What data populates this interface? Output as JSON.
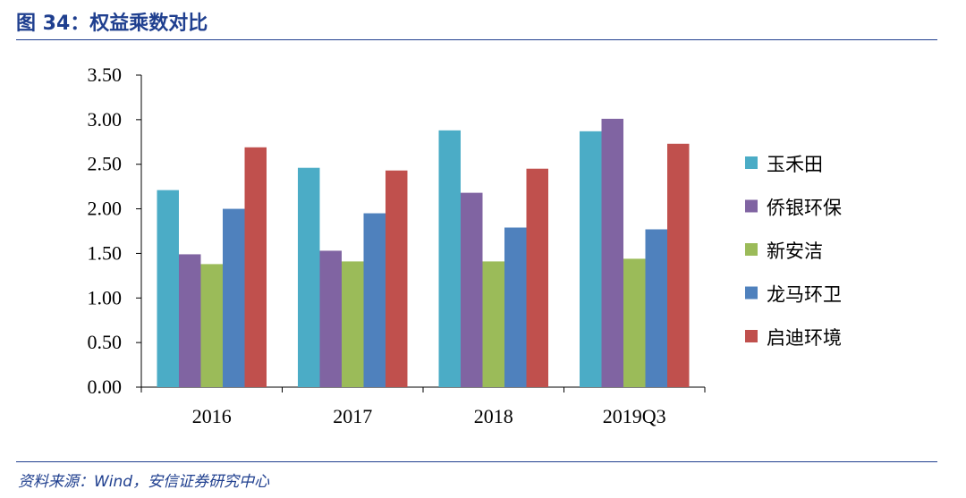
{
  "figure": {
    "title": "图 34：权益乘数对比",
    "source": "资料来源：Wind，安信证券研究中心"
  },
  "chart_data": {
    "type": "bar",
    "title": "",
    "xlabel": "",
    "ylabel": "",
    "categories": [
      "2016",
      "2017",
      "2018",
      "2019Q3"
    ],
    "ylim": [
      0,
      3.5
    ],
    "yticks": [
      "0.00",
      "0.50",
      "1.00",
      "1.50",
      "2.00",
      "2.50",
      "3.00",
      "3.50"
    ],
    "grid": false,
    "legend_position": "right",
    "series": [
      {
        "name": "玉禾田",
        "color": "#4BACC6",
        "values": [
          2.21,
          2.46,
          2.88,
          2.87
        ]
      },
      {
        "name": "侨银环保",
        "color": "#8064A2",
        "values": [
          1.49,
          1.53,
          2.18,
          3.01
        ]
      },
      {
        "name": "新安洁",
        "color": "#9BBB59",
        "values": [
          1.38,
          1.41,
          1.41,
          1.44
        ]
      },
      {
        "name": "龙马环卫",
        "color": "#4F81BD",
        "values": [
          2.0,
          1.95,
          1.79,
          1.77
        ]
      },
      {
        "name": "启迪环境",
        "color": "#C0504D",
        "values": [
          2.69,
          2.43,
          2.45,
          2.73
        ]
      }
    ]
  }
}
